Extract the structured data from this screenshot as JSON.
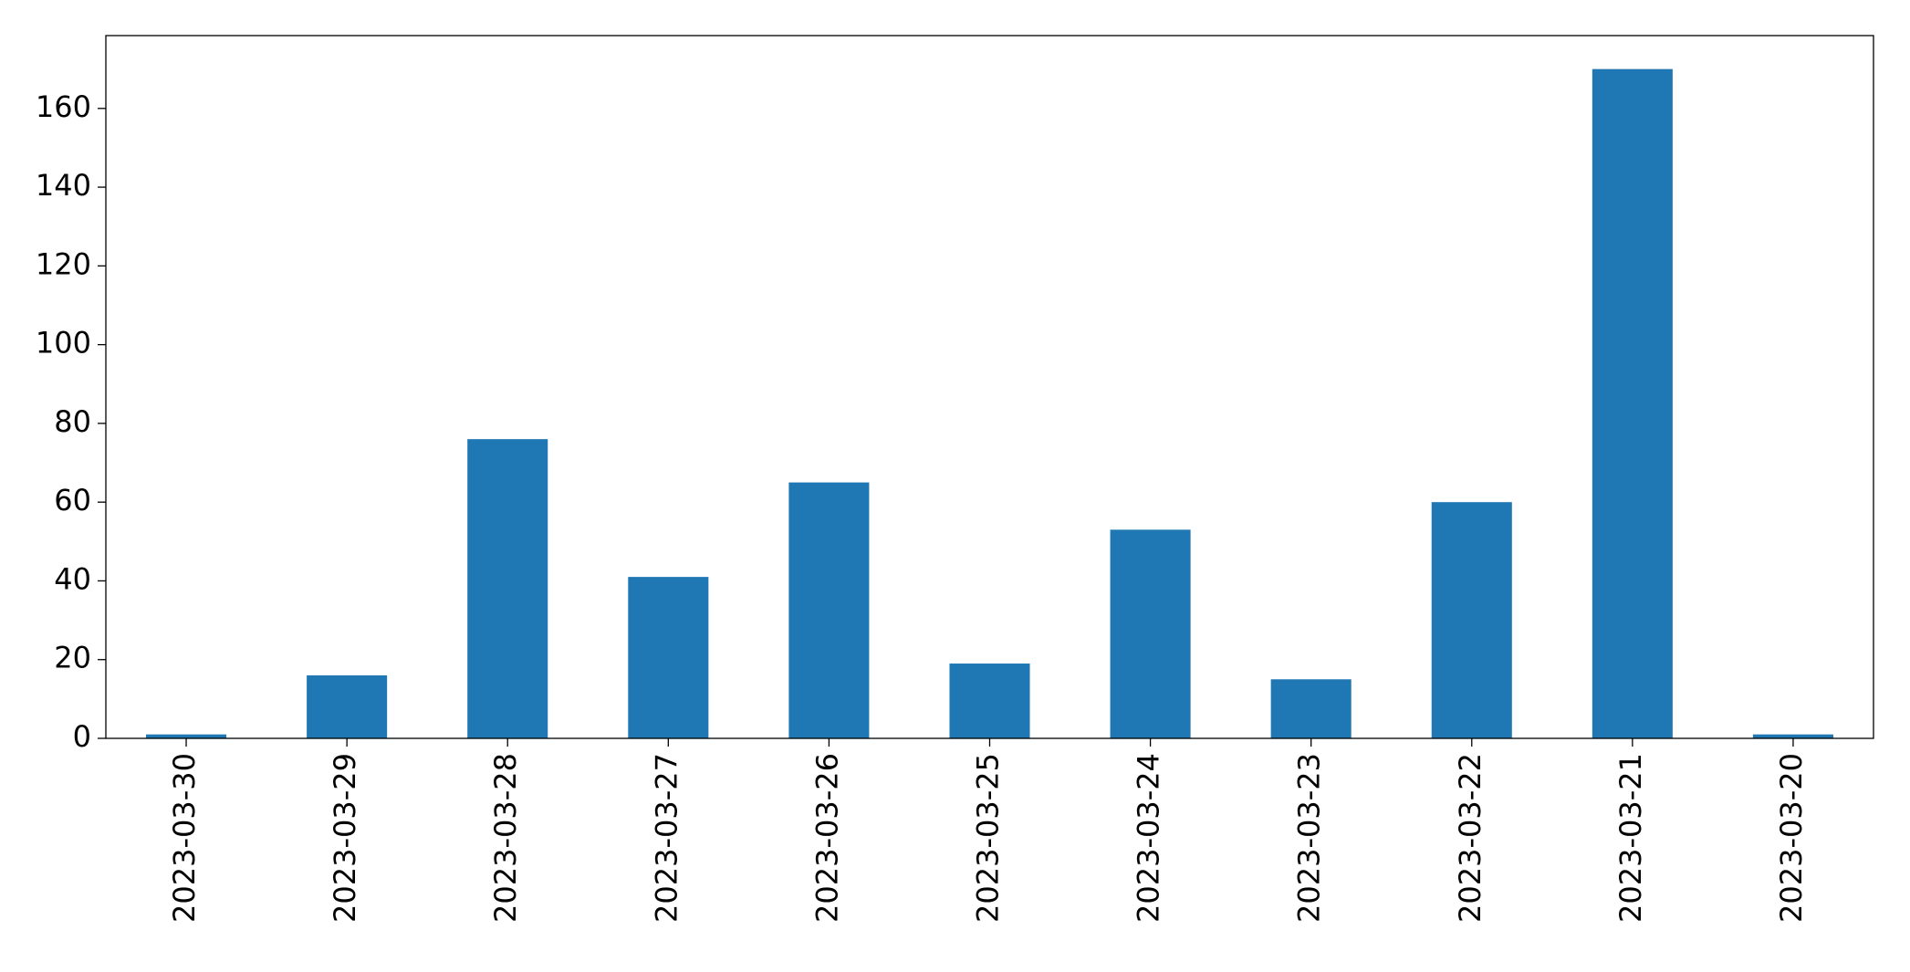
{
  "chart_data": {
    "type": "bar",
    "categories": [
      "2023-03-30",
      "2023-03-29",
      "2023-03-28",
      "2023-03-27",
      "2023-03-26",
      "2023-03-25",
      "2023-03-24",
      "2023-03-23",
      "2023-03-22",
      "2023-03-21",
      "2023-03-20"
    ],
    "values": [
      1,
      16,
      76,
      41,
      65,
      19,
      53,
      15,
      60,
      170,
      1
    ],
    "color": "#1f77b4",
    "ylim": [
      0,
      178.5
    ],
    "yticks": [
      0,
      20,
      40,
      60,
      80,
      100,
      120,
      140,
      160
    ],
    "grid": false
  }
}
